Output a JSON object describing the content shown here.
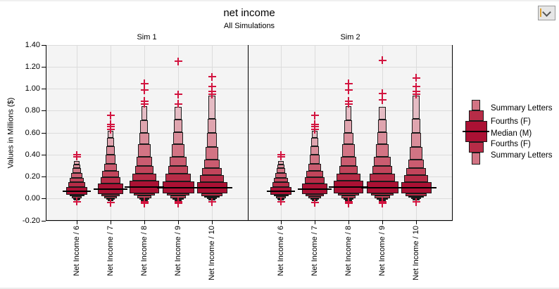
{
  "header": {
    "title": "net income",
    "subtitle": "All Simulations"
  },
  "window": {
    "controls": {
      "dropdown_icon": "chevron-down"
    }
  },
  "y_axis": {
    "label": "Values in Millions ($)",
    "tick_labels": [
      "1.40",
      "1.20",
      "1.00",
      "0.80",
      "0.60",
      "0.40",
      "0.20",
      "0.00",
      "-0.20"
    ]
  },
  "legend": {
    "items": [
      "Summary Letters",
      "Fourths (F)",
      "Median (M)",
      "Fourths (F)",
      "Summary Letters"
    ]
  },
  "colors": {
    "box_ramp": [
      "#ab1134",
      "#b72c47",
      "#c1455b",
      "#ca5c70",
      "#d27484",
      "#d98d9a",
      "#dfa5af",
      "#e5bcc4"
    ],
    "outlier": "#d2143f",
    "grid": "#dcdcdc",
    "plot_background": "#f4f4f4",
    "axis": "#000000"
  },
  "chart_data": {
    "type": "boxen (letter-value box plot)",
    "title": "net income",
    "subtitle": "All Simulations",
    "ylabel": "Values in Millions ($)",
    "ylim": [
      -0.2,
      1.4
    ],
    "ytick_step": 0.2,
    "grid": true,
    "legend_position": "right",
    "panels": [
      {
        "label": "Sim 1",
        "categories": [
          "Net Income / 6",
          "Net Income / 7",
          "Net Income / 8",
          "Net Income / 9",
          "Net Income / 10"
        ],
        "boxes": [
          {
            "median": 0.07,
            "fourths": [
              0.038,
              0.108
            ],
            "upper_letters": [
              0.15,
              0.19,
              0.235,
              0.28,
              0.315,
              0.345
            ],
            "lower_letters": [
              0.022,
              0.008,
              -0.004,
              -0.012
            ],
            "outliers_high": [
              0.4,
              0.385
            ],
            "outliers_low": [
              -0.025
            ]
          },
          {
            "median": 0.088,
            "fourths": [
              0.044,
              0.138
            ],
            "upper_letters": [
              0.195,
              0.255,
              0.32,
              0.4,
              0.48,
              0.555,
              0.62
            ],
            "lower_letters": [
              0.024,
              0.006,
              -0.006,
              -0.016
            ],
            "outliers_high": [
              0.76,
              0.68,
              0.655,
              0.63
            ],
            "outliers_low": [
              -0.035
            ]
          },
          {
            "median": 0.108,
            "fourths": [
              0.05,
              0.162
            ],
            "upper_letters": [
              0.23,
              0.3,
              0.385,
              0.495,
              0.6,
              0.715,
              0.845
            ],
            "lower_letters": [
              0.028,
              0.008,
              -0.006,
              -0.018
            ],
            "outliers_high": [
              1.05,
              0.99,
              0.89,
              0.865
            ],
            "outliers_low": [
              -0.025,
              -0.04
            ]
          },
          {
            "median": 0.1,
            "fourths": [
              0.048,
              0.158
            ],
            "upper_letters": [
              0.228,
              0.298,
              0.383,
              0.497,
              0.608,
              0.72,
              0.84
            ],
            "lower_letters": [
              0.028,
              0.008,
              -0.007,
              -0.02
            ],
            "outliers_high": [
              1.25,
              0.95,
              0.865
            ],
            "outliers_low": [
              -0.025,
              -0.04
            ]
          },
          {
            "median": 0.102,
            "fourths": [
              0.048,
              0.155
            ],
            "upper_letters": [
              0.215,
              0.283,
              0.357,
              0.475,
              0.603,
              0.726,
              0.94
            ],
            "lower_letters": [
              0.027,
              0.01,
              -0.003,
              -0.016
            ],
            "outliers_high": [
              1.11,
              1.02,
              0.98,
              0.952
            ],
            "outliers_low": [
              -0.03
            ]
          }
        ]
      },
      {
        "label": "Sim 2",
        "categories": [
          "Net Income / 6",
          "Net Income / 7",
          "Net Income / 8",
          "Net Income / 9",
          "Net Income / 10"
        ],
        "boxes": [
          {
            "median": 0.07,
            "fourths": [
              0.038,
              0.108
            ],
            "upper_letters": [
              0.15,
              0.19,
              0.235,
              0.28,
              0.315,
              0.345
            ],
            "lower_letters": [
              0.022,
              0.008,
              -0.004,
              -0.012
            ],
            "outliers_high": [
              0.4,
              0.385
            ],
            "outliers_low": [
              -0.025
            ]
          },
          {
            "median": 0.088,
            "fourths": [
              0.044,
              0.138
            ],
            "upper_letters": [
              0.195,
              0.255,
              0.32,
              0.4,
              0.48,
              0.555,
              0.62
            ],
            "lower_letters": [
              0.024,
              0.006,
              -0.006,
              -0.016
            ],
            "outliers_high": [
              0.76,
              0.68,
              0.655,
              0.63
            ],
            "outliers_low": [
              -0.035
            ]
          },
          {
            "median": 0.108,
            "fourths": [
              0.05,
              0.162
            ],
            "upper_letters": [
              0.23,
              0.3,
              0.385,
              0.495,
              0.6,
              0.715,
              0.845
            ],
            "lower_letters": [
              0.028,
              0.008,
              -0.006,
              -0.018
            ],
            "outliers_high": [
              1.05,
              0.99,
              0.89,
              0.865
            ],
            "outliers_low": [
              -0.025,
              -0.04
            ]
          },
          {
            "median": 0.1,
            "fourths": [
              0.048,
              0.158
            ],
            "upper_letters": [
              0.228,
              0.298,
              0.383,
              0.497,
              0.608,
              0.72,
              0.84
            ],
            "lower_letters": [
              0.028,
              0.008,
              -0.007,
              -0.02
            ],
            "outliers_high": [
              1.26,
              0.96,
              0.9
            ],
            "outliers_low": [
              -0.025,
              -0.04
            ]
          },
          {
            "median": 0.102,
            "fourths": [
              0.048,
              0.155
            ],
            "upper_letters": [
              0.215,
              0.283,
              0.357,
              0.475,
              0.603,
              0.726,
              0.94
            ],
            "lower_letters": [
              0.027,
              0.01,
              -0.003,
              -0.016
            ],
            "outliers_high": [
              1.1,
              1.02,
              0.977,
              0.952
            ],
            "outliers_low": [
              -0.03
            ]
          }
        ]
      }
    ]
  }
}
